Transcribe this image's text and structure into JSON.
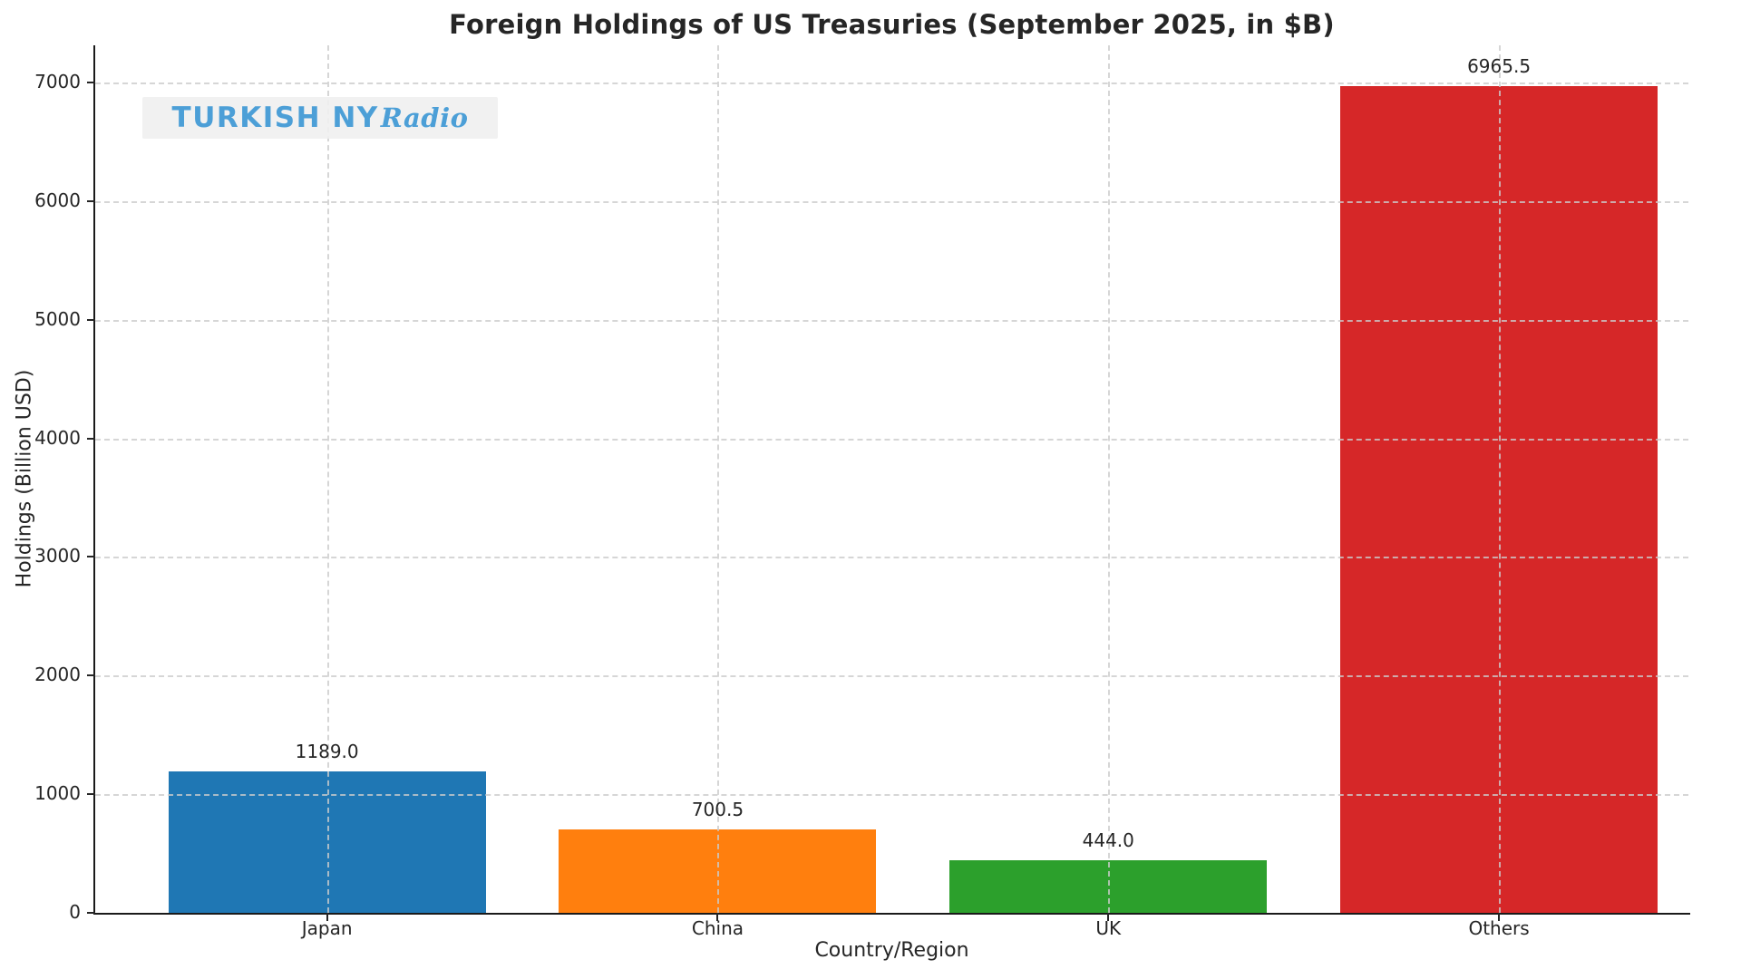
{
  "chart_data": {
    "type": "bar",
    "title": "Foreign Holdings of US Treasuries (September 2025, in $B)",
    "xlabel": "Country/Region",
    "ylabel": "Holdings (Billion USD)",
    "categories": [
      "Japan",
      "China",
      "UK",
      "Others"
    ],
    "values": [
      1189.0,
      700.5,
      444.0,
      6965.5
    ],
    "value_labels": [
      "1189.0",
      "700.5",
      "444.0",
      "6965.5"
    ],
    "bar_colors": [
      "#1f77b4",
      "#ff7f0e",
      "#2ca02c",
      "#d62728"
    ],
    "yticks": [
      0,
      1000,
      2000,
      3000,
      4000,
      5000,
      6000,
      7000
    ],
    "ylim": [
      0,
      7313
    ],
    "grid": "dashed, both axes",
    "legend_position": "none"
  },
  "watermark": {
    "text_main": "TURKISH NY",
    "text_script": "Radio",
    "text_color": "#4c9fd7",
    "background_color": "#f0f0f0"
  },
  "figure": {
    "background_color": "#ffffff",
    "text_color": "#262626"
  }
}
